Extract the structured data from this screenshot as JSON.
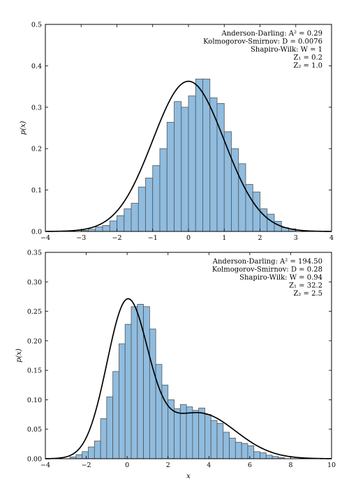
{
  "chart_data": [
    {
      "type": "bar",
      "subtype": "histogram-with-pdf",
      "xlim": [
        -4,
        4
      ],
      "ylim": [
        0,
        0.55
      ],
      "xticks": [
        "−4",
        "−3",
        "−2",
        "−1",
        "0",
        "1",
        "2",
        "3",
        "4"
      ],
      "yticks": [
        "0.0",
        "0.1",
        "0.2",
        "0.3",
        "0.4",
        "0.5"
      ],
      "ylabel": "p(x)",
      "xlabel": "",
      "stats": [
        "Anderson-Darling: A² = 0.29",
        "Kolmogorov-Smirnov: D = 0.0076",
        "Shapiro-Wilk: W = 1",
        "Z₁ = 0.2",
        "Z₂ = 1.0"
      ],
      "bin_edges": [
        -3.0,
        -2.8,
        -2.6,
        -2.4,
        -2.2,
        -2.0,
        -1.8,
        -1.6,
        -1.4,
        -1.2,
        -1.0,
        -0.8,
        -0.6,
        -0.4,
        -0.2,
        0.0,
        0.2,
        0.4,
        0.6,
        0.8,
        1.0,
        1.2,
        1.4,
        1.6,
        1.8,
        2.0,
        2.2,
        2.4,
        2.6,
        2.8,
        3.0
      ],
      "bin_values": [
        0.003,
        0.006,
        0.012,
        0.016,
        0.028,
        0.042,
        0.06,
        0.075,
        0.118,
        0.142,
        0.175,
        0.22,
        0.29,
        0.345,
        0.33,
        0.36,
        0.405,
        0.405,
        0.355,
        0.34,
        0.265,
        0.22,
        0.18,
        0.125,
        0.105,
        0.06,
        0.046,
        0.027,
        0.01,
        0.007
      ],
      "pdf": {
        "kind": "normal",
        "mean": 0,
        "sd": 1
      }
    },
    {
      "type": "bar",
      "subtype": "histogram-with-pdf",
      "xlim": [
        -4,
        10
      ],
      "ylim": [
        0,
        0.35
      ],
      "xticks": [
        "−4",
        "−2",
        "0",
        "2",
        "4",
        "6",
        "8",
        "10"
      ],
      "yticks": [
        "0.00",
        "0.05",
        "0.10",
        "0.15",
        "0.20",
        "0.25",
        "0.30",
        "0.35"
      ],
      "ylabel": "p(x)",
      "xlabel": "x",
      "stats": [
        "Anderson-Darling: A² = 194.50",
        "Kolmogorov-Smirnov: D = 0.28",
        "Shapiro-Wilk: W = 0.94",
        "Z₁ = 32.2",
        "Z₂ = 2.5"
      ],
      "bin_edges": [
        -2.8,
        -2.5,
        -2.2,
        -1.9,
        -1.6,
        -1.3,
        -1.0,
        -0.7,
        -0.4,
        -0.1,
        0.2,
        0.5,
        0.8,
        1.1,
        1.4,
        1.7,
        2.0,
        2.3,
        2.6,
        2.9,
        3.2,
        3.5,
        3.8,
        4.1,
        4.4,
        4.7,
        5.0,
        5.3,
        5.6,
        5.9,
        6.2,
        6.5,
        6.8,
        7.1,
        7.4,
        7.7
      ],
      "bin_values": [
        0.003,
        0.007,
        0.012,
        0.02,
        0.03,
        0.068,
        0.105,
        0.148,
        0.195,
        0.228,
        0.258,
        0.262,
        0.258,
        0.22,
        0.16,
        0.125,
        0.1,
        0.085,
        0.092,
        0.088,
        0.082,
        0.086,
        0.075,
        0.065,
        0.06,
        0.045,
        0.035,
        0.028,
        0.026,
        0.022,
        0.012,
        0.01,
        0.006,
        0.004,
        0.002
      ],
      "pdf": {
        "kind": "gaussian-mixture",
        "components": [
          {
            "weight": 0.65,
            "mean": 0,
            "sd": 1
          },
          {
            "weight": 0.35,
            "mean": 3.5,
            "sd": 1.8
          }
        ]
      }
    }
  ]
}
